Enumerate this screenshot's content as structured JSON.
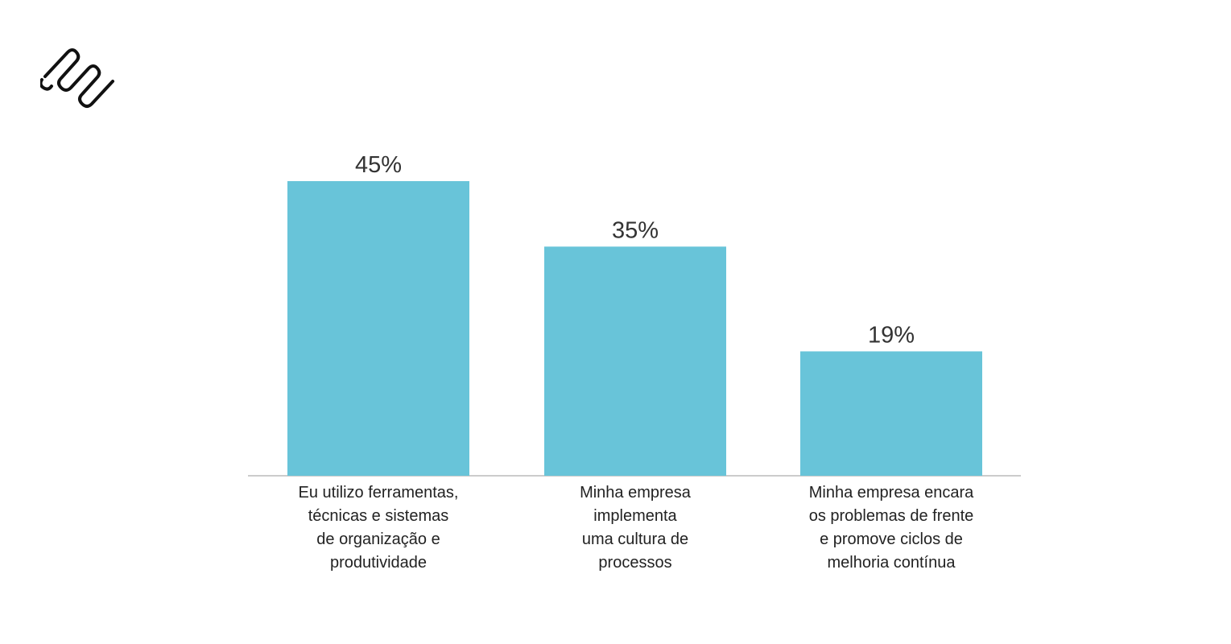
{
  "colors": {
    "bar": "#68C4D9",
    "axis": "#BBBBBB",
    "text": "#333333",
    "logo": "#111111"
  },
  "logo": {
    "icon": "zigzag-logo-icon"
  },
  "chart_data": {
    "type": "bar",
    "categories": [
      [
        "Eu utilizo ferramentas,",
        "técnicas e sistemas",
        "de organização e",
        "produtividade"
      ],
      [
        "Minha empresa",
        "implementa",
        "uma cultura de",
        "processos"
      ],
      [
        "Minha empresa encara",
        "os problemas de frente",
        "e promove ciclos de",
        "melhoria contínua"
      ]
    ],
    "values": [
      45,
      35,
      19
    ],
    "value_labels": [
      "45%",
      "35%",
      "19%"
    ],
    "ylim": [
      0,
      50
    ],
    "grid": false,
    "legend": "none"
  }
}
